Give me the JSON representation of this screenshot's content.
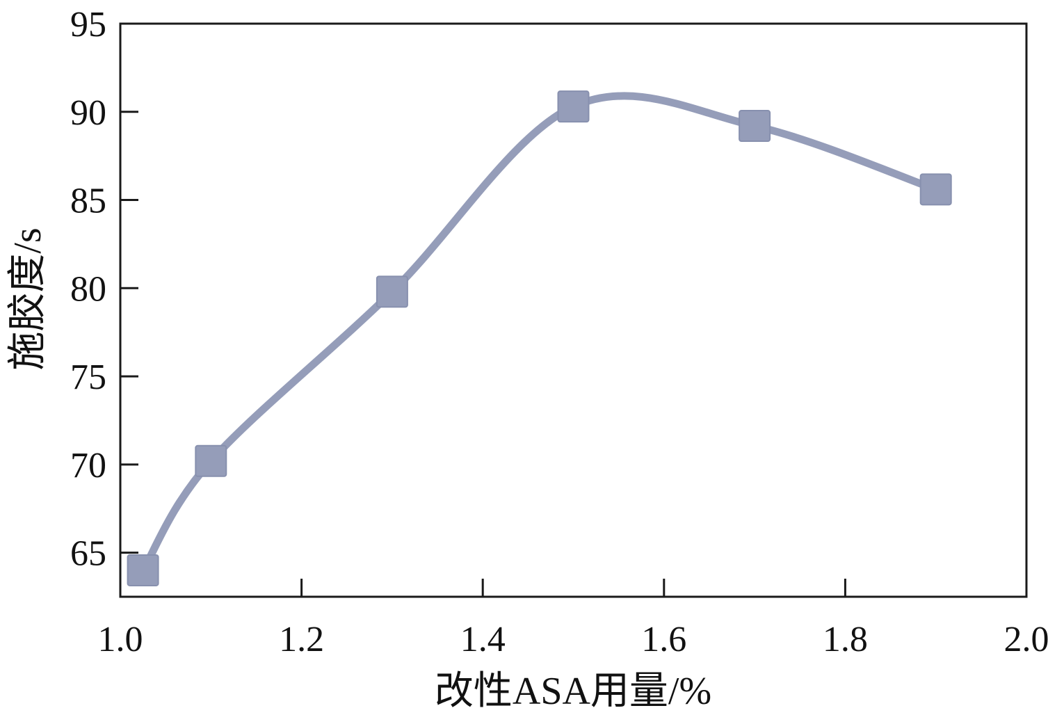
{
  "chart_data": {
    "type": "line",
    "title": "",
    "xlabel": "改性ASA用量/%",
    "ylabel": "施胶度/s",
    "xlim": [
      1.0,
      2.0
    ],
    "ylim": [
      62.5,
      95
    ],
    "x_ticks": [
      1.0,
      1.2,
      1.4,
      1.6,
      1.8,
      2.0
    ],
    "y_ticks": [
      65,
      70,
      75,
      80,
      85,
      90,
      95
    ],
    "x_tick_labels": [
      "1.0",
      "1.2",
      "1.4",
      "1.6",
      "1.8",
      "2.0"
    ],
    "y_tick_labels": [
      "65",
      "70",
      "75",
      "80",
      "85",
      "90",
      "95"
    ],
    "grid": false,
    "legend": "none",
    "smooth": true,
    "series": [
      {
        "x": [
          1.025,
          1.1,
          1.3,
          1.5,
          1.7,
          1.9
        ],
        "y": [
          64.0,
          70.2,
          79.8,
          90.3,
          89.2,
          85.6
        ],
        "color": "#959db9",
        "marker": "square"
      }
    ]
  }
}
